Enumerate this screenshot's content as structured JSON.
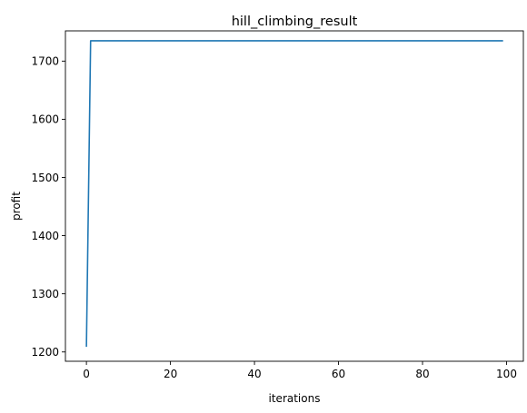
{
  "chart_data": {
    "type": "line",
    "title": "hill_climbing_result",
    "xlabel": "iterations",
    "ylabel": "profit",
    "xlim": [
      -5,
      104
    ],
    "ylim": [
      1184,
      1752
    ],
    "xticks": [
      0,
      20,
      40,
      60,
      80,
      100
    ],
    "xtick_labels": [
      "0",
      "20",
      "40",
      "60",
      "80",
      "100"
    ],
    "yticks": [
      1200,
      1300,
      1400,
      1500,
      1600,
      1700
    ],
    "ytick_labels": [
      "1200",
      "1300",
      "1400",
      "1500",
      "1600",
      "1700"
    ],
    "grid": false,
    "legend": "none",
    "series": [
      {
        "color": "#1f77b4",
        "x": [
          0,
          1,
          99
        ],
        "y": [
          1210,
          1735,
          1735
        ]
      }
    ]
  }
}
